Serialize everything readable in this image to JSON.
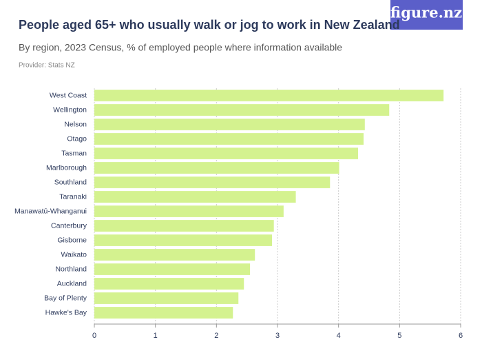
{
  "chart_data": {
    "type": "bar",
    "orientation": "horizontal",
    "title": "People aged 65+ who usually walk or jog to work in New Zealand",
    "subtitle": "By region, 2023 Census, % of employed people where information available",
    "source": "Provider: Stats NZ",
    "logo": "figure.nz",
    "categories": [
      "West Coast",
      "Wellington",
      "Nelson",
      "Otago",
      "Tasman",
      "Marlborough",
      "Southland",
      "Taranaki",
      "Manawatū-Whanganui",
      "Canterbury",
      "Gisborne",
      "Waikato",
      "Northland",
      "Auckland",
      "Bay of Plenty",
      "Hawke's Bay"
    ],
    "values": [
      5.72,
      4.83,
      4.43,
      4.41,
      4.32,
      4.01,
      3.86,
      3.3,
      3.1,
      2.94,
      2.91,
      2.63,
      2.55,
      2.45,
      2.36,
      2.27
    ],
    "color": "#d4f28f",
    "xlim": [
      0,
      6
    ],
    "xticks": [
      0,
      1,
      2,
      3,
      4,
      5,
      6
    ],
    "grid": true
  }
}
